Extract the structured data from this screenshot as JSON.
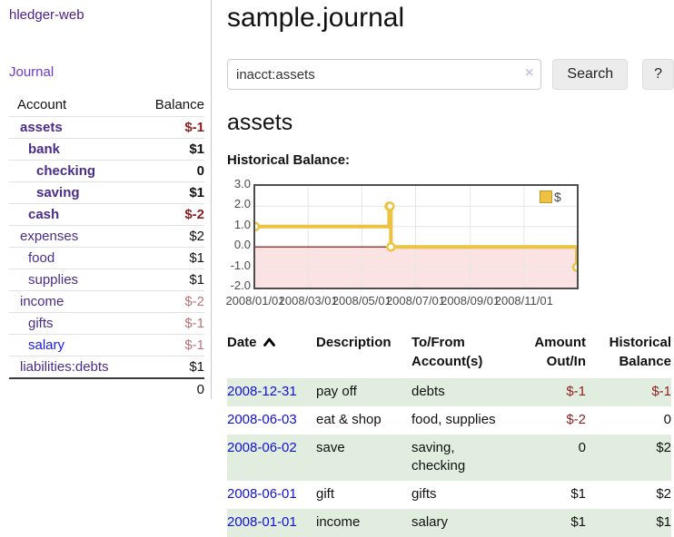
{
  "app": {
    "brand": "hledger-web",
    "nav": {
      "journal": "Journal"
    }
  },
  "sidebar": {
    "header": {
      "account": "Account",
      "balance": "Balance"
    },
    "accounts": [
      {
        "name": "assets",
        "balance": "$-1",
        "level": 1,
        "bold": true,
        "balance_style": "neg-strong"
      },
      {
        "name": "bank",
        "balance": "$1",
        "level": 2,
        "bold": true,
        "balance_style": "plain"
      },
      {
        "name": "checking",
        "balance": "0",
        "level": 3,
        "bold": true,
        "balance_style": "plain"
      },
      {
        "name": "saving",
        "balance": "$1",
        "level": 3,
        "bold": true,
        "balance_style": "plain"
      },
      {
        "name": "cash",
        "balance": "$-2",
        "level": 2,
        "bold": true,
        "balance_style": "neg-strong"
      },
      {
        "name": "expenses",
        "balance": "$2",
        "level": 1,
        "bold": false,
        "balance_style": "plain"
      },
      {
        "name": "food",
        "balance": "$1",
        "level": 2,
        "bold": false,
        "balance_style": "plain"
      },
      {
        "name": "supplies",
        "balance": "$1",
        "level": 2,
        "bold": false,
        "balance_style": "plain"
      },
      {
        "name": "income",
        "balance": "$-2",
        "level": 1,
        "bold": false,
        "balance_style": "neg-soft"
      },
      {
        "name": "gifts",
        "balance": "$-1",
        "level": 2,
        "bold": false,
        "balance_style": "neg-soft"
      },
      {
        "name": "salary",
        "balance": "$-1",
        "level": 2,
        "bold": false,
        "balance_style": "neg-soft",
        "link_style": "blue"
      },
      {
        "name": "liabilities:debts",
        "balance": "$1",
        "level": 1,
        "bold": false,
        "balance_style": "plain"
      }
    ],
    "total": "0"
  },
  "main": {
    "title": "sample.journal",
    "search": {
      "value": "inacct:assets",
      "clear_icon": "×",
      "search_button": "Search",
      "help_button": "?"
    },
    "account_heading": "assets",
    "chart_heading": "Historical Balance:"
  },
  "chart_data": {
    "type": "line",
    "step": true,
    "title": "Historical Balance",
    "legend": [
      {
        "label": "$",
        "color": "#edc240"
      }
    ],
    "legend_position": "top-right",
    "series": [
      {
        "name": "$",
        "color": "#edc240",
        "points": [
          [
            "2008-01-01",
            1
          ],
          [
            "2008-06-01",
            2
          ],
          [
            "2008-06-02",
            2
          ],
          [
            "2008-06-03",
            0
          ],
          [
            "2008-12-31",
            -1
          ]
        ]
      }
    ],
    "xrange": [
      "2008-01-01",
      "2008-12-31"
    ],
    "ylim": [
      -2.0,
      3.0
    ],
    "yticks": [
      3.0,
      2.0,
      1.0,
      0.0,
      -1.0,
      -2.0
    ],
    "ytick_labels": [
      "3.0",
      "2.0",
      "1.0",
      "0.0",
      "-1.0",
      "-2.0"
    ],
    "xticks": [
      "2008/01/01",
      "2008/03/01",
      "2008/05/01",
      "2008/07/01",
      "2008/09/01",
      "2008/11/01"
    ],
    "grid": true,
    "colors": {
      "negative_region_fill": "#fbe3e3",
      "zero_line": "#8b0000",
      "grid": "#e6e6e6",
      "border": "#4d4d4d",
      "tick_text": "#4a4a4a"
    }
  },
  "register": {
    "headers": [
      {
        "lines": [
          "Date"
        ],
        "align": "left",
        "sort": "asc"
      },
      {
        "lines": [
          "Description"
        ],
        "align": "left"
      },
      {
        "lines": [
          "To/From",
          "Account(s)"
        ],
        "align": "left"
      },
      {
        "lines": [
          "Amount",
          "Out/In"
        ],
        "align": "right"
      },
      {
        "lines": [
          "Historical",
          "Balance"
        ],
        "align": "right"
      }
    ],
    "rows": [
      {
        "date": "2008-12-31",
        "description": "pay off",
        "accounts": "debts",
        "amount": "$-1",
        "amount_neg": true,
        "balance": "$-1",
        "balance_neg": true
      },
      {
        "date": "2008-06-03",
        "description": "eat & shop",
        "accounts": "food, supplies",
        "amount": "$-2",
        "amount_neg": true,
        "balance": "0",
        "balance_neg": false
      },
      {
        "date": "2008-06-02",
        "description": "save",
        "accounts": "saving, checking",
        "amount": "0",
        "amount_neg": false,
        "balance": "$2",
        "balance_neg": false
      },
      {
        "date": "2008-06-01",
        "description": "gift",
        "accounts": "gifts",
        "amount": "$1",
        "amount_neg": false,
        "balance": "$2",
        "balance_neg": false
      },
      {
        "date": "2008-01-01",
        "description": "income",
        "accounts": "salary",
        "amount": "$1",
        "amount_neg": false,
        "balance": "$1",
        "balance_neg": false
      }
    ]
  }
}
